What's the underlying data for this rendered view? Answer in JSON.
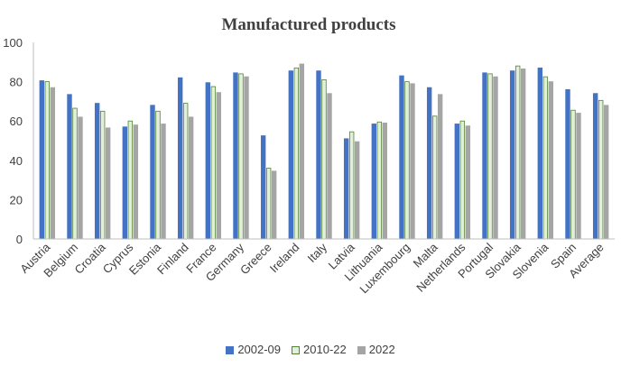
{
  "chart_data": {
    "type": "bar",
    "title": "Manufactured products",
    "xlabel": "",
    "ylabel": "",
    "ylim": [
      0,
      100
    ],
    "yticks": [
      0,
      20,
      40,
      60,
      80,
      100
    ],
    "grid": false,
    "legend_position": "bottom",
    "categories": [
      "Austria",
      "Belgium",
      "Croatia",
      "Cyprus",
      "Estonia",
      "Finland",
      "France",
      "Germany",
      "Greece",
      "Ireland",
      "Italy",
      "Latvia",
      "Lithuania",
      "Luxembourg",
      "Malta",
      "Netherlands",
      "Portugal",
      "Slovakia",
      "Slovenia",
      "Spain",
      "Average"
    ],
    "series": [
      {
        "name": "2002-09",
        "color": "#4472c4",
        "stroke": "#4472c4",
        "values": [
          80.5,
          73.5,
          69,
          57,
          68,
          82,
          79.5,
          84.5,
          52.5,
          85.5,
          85.5,
          51,
          58.5,
          83,
          77,
          58.5,
          84.5,
          85.5,
          87,
          76,
          74
        ]
      },
      {
        "name": "2010-22",
        "color": "#e2efda",
        "stroke": "#548235",
        "values": [
          80,
          66.5,
          65,
          60,
          65,
          69,
          77.5,
          84,
          36,
          87,
          81,
          54.5,
          59.5,
          80,
          62.5,
          60,
          84,
          88,
          82.5,
          65.5,
          70.5
        ]
      },
      {
        "name": "2022",
        "color": "#a5a5a5",
        "stroke": "#a5a5a5",
        "values": [
          77,
          62,
          56.5,
          58,
          58.5,
          62,
          74.5,
          82.5,
          34.5,
          89,
          74,
          49.5,
          59,
          79,
          73.5,
          57.5,
          82.5,
          86.5,
          80,
          64,
          68
        ]
      }
    ]
  }
}
